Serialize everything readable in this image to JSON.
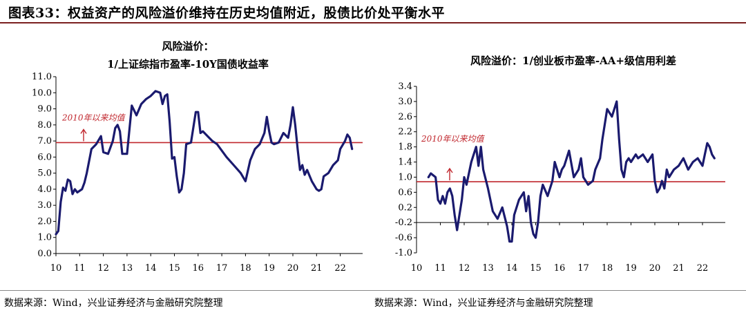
{
  "figure_title": "图表33：权益资产的风险溢价维持在历史均值附近，股债比价处平衡水平",
  "sources": [
    "数据来源：Wind，兴业证券经济与金融研究院整理",
    "数据来源：Wind，兴业证券经济与金融研究院整理"
  ],
  "colors": {
    "line": "#1a1a6e",
    "mean": "#c0262d",
    "axis": "#000000",
    "title_rule": "#7a1f1f"
  },
  "chart_data": [
    {
      "type": "line",
      "title": "风险溢价：",
      "subtitle": "1/上证综指市盈率-10Y国债收益率",
      "x_ticks": [
        "10",
        "11",
        "12",
        "13",
        "14",
        "15",
        "16",
        "17",
        "18",
        "19",
        "20",
        "21",
        "22"
      ],
      "ylim": [
        0.0,
        11.0
      ],
      "y_ticks": [
        "0.0",
        "1.0",
        "2.0",
        "3.0",
        "4.0",
        "5.0",
        "6.0",
        "7.0",
        "8.0",
        "9.0",
        "10.0",
        "11.0"
      ],
      "annotation": "2010年以来均值",
      "mean": 6.9,
      "series": [
        {
          "x": [
            2010.0,
            2010.1,
            2010.2,
            2010.3,
            2010.4,
            2010.5,
            2010.6,
            2010.7,
            2010.8,
            2010.9,
            2011.0,
            2011.1,
            2011.2,
            2011.3,
            2011.5,
            2011.7,
            2011.9,
            2012.0,
            2012.2,
            2012.4,
            2012.5,
            2012.6,
            2012.7,
            2012.8,
            2013.0,
            2013.2,
            2013.3,
            2013.4,
            2013.6,
            2013.8,
            2014.0,
            2014.2,
            2014.4,
            2014.5,
            2014.6,
            2014.7,
            2014.8,
            2014.9,
            2015.0,
            2015.1,
            2015.2,
            2015.3,
            2015.4,
            2015.5,
            2015.7,
            2015.9,
            2016.0,
            2016.1,
            2016.2,
            2016.4,
            2016.6,
            2016.8,
            2017.0,
            2017.2,
            2017.5,
            2017.8,
            2018.0,
            2018.2,
            2018.4,
            2018.6,
            2018.8,
            2018.9,
            2019.0,
            2019.1,
            2019.2,
            2019.4,
            2019.6,
            2019.8,
            2019.9,
            2020.0,
            2020.1,
            2020.2,
            2020.3,
            2020.4,
            2020.5,
            2020.6,
            2020.8,
            2021.0,
            2021.1,
            2021.2,
            2021.3,
            2021.5,
            2021.7,
            2021.9,
            2022.0,
            2022.2,
            2022.3,
            2022.4,
            2022.5
          ],
          "values": [
            1.2,
            1.4,
            3.2,
            4.1,
            3.9,
            4.6,
            4.5,
            3.7,
            4.0,
            3.8,
            3.9,
            4.0,
            4.4,
            5.0,
            6.5,
            6.8,
            7.3,
            6.3,
            6.2,
            7.0,
            7.8,
            8.0,
            7.6,
            6.2,
            6.2,
            9.2,
            8.9,
            8.6,
            9.3,
            9.6,
            9.8,
            10.1,
            10.0,
            9.3,
            9.8,
            9.9,
            8.2,
            5.9,
            6.0,
            4.8,
            3.8,
            4.0,
            5.0,
            6.8,
            6.9,
            8.8,
            8.8,
            7.5,
            7.6,
            7.3,
            7.0,
            6.8,
            6.4,
            6.0,
            5.5,
            5.0,
            4.5,
            5.8,
            6.5,
            6.8,
            7.5,
            8.5,
            7.6,
            6.9,
            6.8,
            6.9,
            7.5,
            7.2,
            8.0,
            9.1,
            8.0,
            6.5,
            5.2,
            5.5,
            4.9,
            5.2,
            4.5,
            4.0,
            3.9,
            4.0,
            4.8,
            5.0,
            5.5,
            5.8,
            6.5,
            7.0,
            7.4,
            7.2,
            6.5
          ]
        }
      ]
    },
    {
      "type": "line",
      "title": "风险溢价：1/创业板市盈率-AA+级信用利差",
      "x_ticks": [
        "10",
        "11",
        "12",
        "13",
        "14",
        "15",
        "16",
        "17",
        "18",
        "19",
        "20",
        "21",
        "22"
      ],
      "ylim": [
        -1.0,
        3.4
      ],
      "y_ticks": [
        "-1.0",
        "-0.6",
        "-0.2",
        "0.2",
        "0.6",
        "1.0",
        "1.4",
        "1.8",
        "2.2",
        "2.6",
        "3.0",
        "3.4"
      ],
      "annotation": "2010年以来均值",
      "mean": 0.88,
      "series": [
        {
          "x": [
            2010.5,
            2010.6,
            2010.8,
            2010.9,
            2011.0,
            2011.1,
            2011.2,
            2011.3,
            2011.4,
            2011.5,
            2011.6,
            2011.7,
            2011.8,
            2011.9,
            2012.0,
            2012.1,
            2012.3,
            2012.5,
            2012.6,
            2012.7,
            2012.8,
            2013.0,
            2013.2,
            2013.4,
            2013.6,
            2013.8,
            2013.9,
            2014.0,
            2014.1,
            2014.3,
            2014.5,
            2014.6,
            2014.7,
            2014.8,
            2014.9,
            2015.0,
            2015.1,
            2015.2,
            2015.3,
            2015.5,
            2015.7,
            2015.8,
            2016.0,
            2016.1,
            2016.2,
            2016.4,
            2016.6,
            2016.8,
            2016.9,
            2017.0,
            2017.2,
            2017.4,
            2017.5,
            2017.7,
            2017.8,
            2018.0,
            2018.2,
            2018.4,
            2018.5,
            2018.6,
            2018.7,
            2018.8,
            2018.9,
            2019.0,
            2019.1,
            2019.2,
            2019.3,
            2019.5,
            2019.7,
            2019.9,
            2020.0,
            2020.1,
            2020.2,
            2020.3,
            2020.4,
            2020.5,
            2020.6,
            2020.8,
            2021.0,
            2021.2,
            2021.4,
            2021.6,
            2021.8,
            2022.0,
            2022.1,
            2022.2,
            2022.3,
            2022.4,
            2022.5
          ],
          "values": [
            1.0,
            1.1,
            1.0,
            0.4,
            0.3,
            0.5,
            0.3,
            0.6,
            0.7,
            0.5,
            0.0,
            -0.4,
            0.0,
            0.4,
            1.0,
            0.8,
            1.4,
            1.8,
            1.3,
            1.8,
            1.2,
            0.7,
            0.1,
            -0.1,
            0.2,
            -0.3,
            -0.7,
            -0.7,
            0.0,
            0.4,
            0.6,
            0.1,
            0.5,
            -0.2,
            -0.5,
            -0.6,
            -0.2,
            0.5,
            0.8,
            0.5,
            0.9,
            1.4,
            1.0,
            1.2,
            1.3,
            1.7,
            1.0,
            1.2,
            1.5,
            1.0,
            0.8,
            0.9,
            1.2,
            1.5,
            2.0,
            2.8,
            2.6,
            3.0,
            2.0,
            1.2,
            1.0,
            1.4,
            1.5,
            1.4,
            1.5,
            1.6,
            1.5,
            1.6,
            1.4,
            1.6,
            0.9,
            0.6,
            0.7,
            0.9,
            0.7,
            1.2,
            1.0,
            1.2,
            1.3,
            1.5,
            1.2,
            1.4,
            1.5,
            1.3,
            1.6,
            1.9,
            1.8,
            1.6,
            1.5
          ]
        }
      ]
    }
  ]
}
